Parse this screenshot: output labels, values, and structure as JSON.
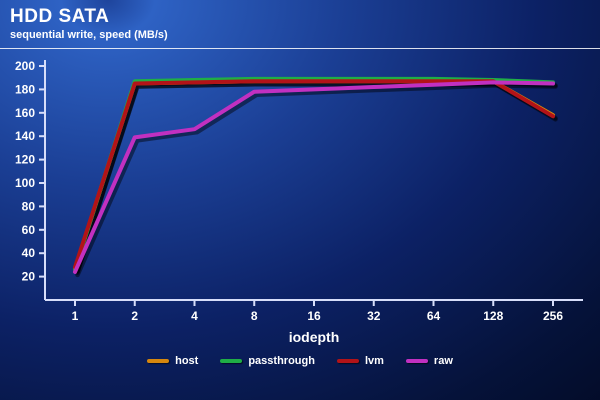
{
  "chart_data": {
    "type": "line",
    "title": "HDD SATA",
    "subtitle": "sequential write, speed (MB/s)",
    "xlabel": "iodepth",
    "ylabel": "",
    "categories": [
      "1",
      "2",
      "4",
      "8",
      "16",
      "32",
      "64",
      "128",
      "256"
    ],
    "ylim": [
      0,
      200
    ],
    "yticks": [
      20,
      40,
      60,
      80,
      100,
      120,
      140,
      160,
      180,
      200
    ],
    "grid": false,
    "legend_position": "bottom",
    "axis_color": "#d7defa",
    "series": [
      {
        "name": "host",
        "color": "#d6870e",
        "values": [
          27,
          185,
          186,
          187,
          187,
          187,
          187,
          187,
          158
        ]
      },
      {
        "name": "passthrough",
        "color": "#1fae46",
        "values": [
          26,
          187,
          188,
          189,
          189,
          189,
          189,
          188,
          186
        ]
      },
      {
        "name": "lvm",
        "color": "#b21318",
        "values": [
          28,
          185,
          186,
          187,
          187,
          187,
          187,
          187,
          157
        ]
      },
      {
        "name": "raw",
        "color": "#c130c1",
        "values": [
          24,
          139,
          146,
          178,
          180,
          182,
          184,
          186,
          185
        ]
      }
    ]
  }
}
